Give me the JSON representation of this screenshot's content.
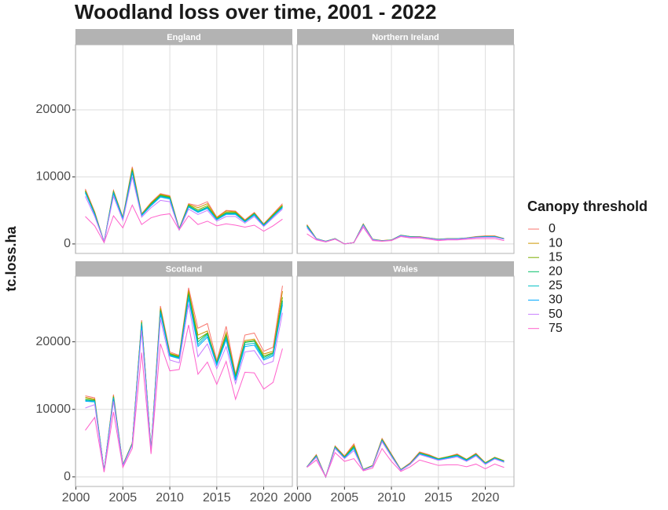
{
  "chart_data": {
    "type": "line",
    "title": "Woodland loss over time, 2001 - 2022",
    "y_label": "tc.loss.ha",
    "legend_title": "Canopy threshold",
    "x": [
      2001,
      2002,
      2003,
      2004,
      2005,
      2006,
      2007,
      2008,
      2009,
      2010,
      2011,
      2012,
      2013,
      2014,
      2015,
      2016,
      2017,
      2018,
      2019,
      2020,
      2021,
      2022
    ],
    "xlim": [
      1999.95,
      2023.05
    ],
    "xticks": [
      2000,
      2005,
      2010,
      2015,
      2020
    ],
    "ylim": [
      -1415,
      29715
    ],
    "yticks": [
      0,
      10000,
      20000
    ],
    "grid": true,
    "series": [
      {
        "name": "0",
        "color": "#F8766D"
      },
      {
        "name": "10",
        "color": "#CD9600"
      },
      {
        "name": "15",
        "color": "#7CAE00"
      },
      {
        "name": "20",
        "color": "#00BE67"
      },
      {
        "name": "25",
        "color": "#00BFC4"
      },
      {
        "name": "30",
        "color": "#00A9FF"
      },
      {
        "name": "50",
        "color": "#C77CFF"
      },
      {
        "name": "75",
        "color": "#FF61CC"
      }
    ],
    "panels": [
      {
        "title": "England",
        "series": [
          {
            "values": [
              8200,
              4800,
              300,
              8000,
              4000,
              11500,
              4500,
              6200,
              7500,
              7200,
              2300,
              6000,
              5700,
              6300,
              4000,
              5000,
              4900,
              3600,
              4700,
              3000,
              4500,
              6000
            ]
          },
          {
            "values": [
              8000,
              4700,
              300,
              7900,
              3900,
              11300,
              4400,
              6100,
              7400,
              7100,
              2300,
              5900,
              5400,
              6000,
              3900,
              4900,
              4800,
              3500,
              4600,
              2900,
              4400,
              5800
            ]
          },
          {
            "values": [
              7900,
              4600,
              300,
              7800,
              3900,
              11100,
              4400,
              6000,
              7300,
              7000,
              2200,
              5800,
              5100,
              5700,
              3800,
              4700,
              4700,
              3400,
              4500,
              2900,
              4300,
              5700
            ]
          },
          {
            "values": [
              7800,
              4500,
              300,
              7700,
              3800,
              10900,
              4300,
              5900,
              7200,
              6900,
              2200,
              5700,
              4900,
              5500,
              3700,
              4600,
              4600,
              3400,
              4500,
              2800,
              4200,
              5600
            ]
          },
          {
            "values": [
              7700,
              4400,
              300,
              7600,
              3800,
              10700,
              4300,
              5800,
              7100,
              6800,
              2200,
              5600,
              4800,
              5400,
              3700,
              4500,
              4500,
              3300,
              4400,
              2800,
              4100,
              5500
            ]
          },
          {
            "values": [
              7600,
              4400,
              300,
              7500,
              3700,
              10600,
              4200,
              5700,
              7000,
              6700,
              2100,
              5500,
              4700,
              5300,
              3600,
              4400,
              4400,
              3300,
              4300,
              2700,
              4100,
              5400
            ]
          },
          {
            "values": [
              7100,
              4100,
              300,
              7100,
              3500,
              10000,
              4000,
              5400,
              6500,
              6300,
              2100,
              5200,
              4400,
              5000,
              3400,
              4100,
              4100,
              3100,
              4100,
              2600,
              3900,
              5200
            ]
          },
          {
            "values": [
              4100,
              2700,
              200,
              4200,
              2400,
              5800,
              2900,
              3900,
              4300,
              4500,
              2100,
              4200,
              2900,
              3400,
              2700,
              3000,
              2800,
              2500,
              2800,
              1900,
              2700,
              3700
            ]
          }
        ]
      },
      {
        "title": "Northern Ireland",
        "series": [
          {
            "values": [
              2900,
              800,
              400,
              800,
              0,
              200,
              3000,
              700,
              500,
              600,
              1300,
              1100,
              1100,
              900,
              700,
              800,
              800,
              900,
              1100,
              1200,
              1200,
              800
            ]
          },
          {
            "values": [
              2800,
              800,
              400,
              800,
              0,
              200,
              2950,
              700,
              500,
              600,
              1300,
              1100,
              1050,
              900,
              700,
              800,
              800,
              900,
              1050,
              1150,
              1150,
              800
            ]
          },
          {
            "values": [
              2750,
              780,
              400,
              790,
              0,
              200,
              2900,
              680,
              480,
              580,
              1280,
              1080,
              1030,
              880,
              680,
              780,
              780,
              880,
              1030,
              1120,
              1120,
              780
            ]
          },
          {
            "values": [
              2700,
              770,
              390,
              780,
              0,
              200,
              2880,
              670,
              470,
              570,
              1270,
              1070,
              1020,
              870,
              670,
              770,
              770,
              870,
              1010,
              1100,
              1100,
              760
            ]
          },
          {
            "values": [
              2650,
              760,
              380,
              770,
              0,
              200,
              2850,
              660,
              460,
              560,
              1260,
              1060,
              1010,
              860,
              660,
              760,
              760,
              860,
              1000,
              1080,
              1080,
              750
            ]
          },
          {
            "values": [
              2600,
              750,
              370,
              760,
              0,
              200,
              2820,
              650,
              450,
              550,
              1250,
              1050,
              1000,
              850,
              650,
              750,
              750,
              850,
              990,
              1060,
              1060,
              740
            ]
          },
          {
            "values": [
              2400,
              720,
              350,
              750,
              0,
              200,
              2750,
              620,
              440,
              540,
              1200,
              1000,
              980,
              820,
              620,
              720,
              700,
              820,
              950,
              1000,
              1000,
              700
            ]
          },
          {
            "values": [
              1500,
              600,
              300,
              700,
              0,
              200,
              2500,
              500,
              400,
              500,
              1100,
              900,
              900,
              700,
              500,
              600,
              600,
              700,
              800,
              800,
              800,
              500
            ]
          }
        ]
      },
      {
        "title": "Scotland",
        "series": [
          {
            "values": [
              12000,
              11700,
              900,
              12200,
              1800,
              5000,
              23200,
              4000,
              25300,
              18500,
              18000,
              28000,
              22000,
              22700,
              17200,
              22300,
              15200,
              21000,
              21300,
              18600,
              19200,
              28300
            ]
          },
          {
            "values": [
              11800,
              11500,
              900,
              12000,
              1800,
              5000,
              23000,
              4000,
              25000,
              18300,
              17900,
              27600,
              21000,
              21600,
              17000,
              21400,
              15000,
              20200,
              20400,
              18200,
              18600,
              27500
            ]
          },
          {
            "values": [
              11600,
              11400,
              900,
              11900,
              1700,
              4900,
              22900,
              4000,
              24800,
              18200,
              17800,
              27300,
              20400,
              21300,
              16900,
              21000,
              14900,
              20000,
              20200,
              17900,
              18400,
              26600
            ]
          },
          {
            "values": [
              11400,
              11300,
              900,
              11800,
              1700,
              4900,
              22800,
              3900,
              24600,
              18100,
              17700,
              27000,
              20000,
              21200,
              16800,
              20800,
              14700,
              19900,
              20100,
              17700,
              18300,
              26100
            ]
          },
          {
            "values": [
              11300,
              11200,
              900,
              11700,
              1700,
              4800,
              22600,
              3900,
              24400,
              18000,
              17600,
              26700,
              19600,
              21000,
              16700,
              20600,
              14500,
              19600,
              19800,
              17500,
              18100,
              25800
            ]
          },
          {
            "values": [
              11200,
              11100,
              900,
              11600,
              1700,
              4800,
              22400,
              3800,
              24200,
              17900,
              17500,
              26400,
              19300,
              20700,
              16500,
              20300,
              14300,
              19300,
              19500,
              17300,
              17900,
              25500
            ]
          },
          {
            "values": [
              10200,
              10700,
              800,
              11200,
              1600,
              4700,
              21700,
              3700,
              23400,
              17300,
              16900,
              25600,
              17800,
              19700,
              16000,
              19300,
              13800,
              18500,
              18700,
              16600,
              17100,
              24300
            ]
          },
          {
            "values": [
              6900,
              8800,
              700,
              9600,
              1400,
              4200,
              18400,
              3400,
              19700,
              15700,
              15900,
              22500,
              15200,
              17000,
              13700,
              17100,
              11500,
              15500,
              15400,
              13000,
              14000,
              19000
            ]
          }
        ]
      },
      {
        "title": "Wales",
        "series": [
          {
            "values": [
              1500,
              3300,
              0,
              4600,
              3100,
              4900,
              1100,
              1700,
              5700,
              3400,
              1100,
              2100,
              3700,
              3300,
              2700,
              3000,
              3400,
              2600,
              3500,
              2100,
              2900,
              2400
            ]
          },
          {
            "values": [
              1500,
              3200,
              0,
              4500,
              3000,
              4700,
              1100,
              1700,
              5600,
              3300,
              1100,
              2000,
              3600,
              3200,
              2700,
              3000,
              3300,
              2600,
              3400,
              2100,
              2900,
              2400
            ]
          },
          {
            "values": [
              1500,
              3150,
              0,
              4450,
              2950,
              4550,
              1080,
              1650,
              5500,
              3250,
              1050,
              1980,
              3550,
              3150,
              2650,
              2950,
              3250,
              2550,
              3350,
              2050,
              2850,
              2350
            ]
          },
          {
            "values": [
              1500,
              3100,
              0,
              4400,
              2900,
              4400,
              1060,
              1620,
              5450,
              3200,
              1040,
              1950,
              3500,
              3100,
              2620,
              2900,
              3200,
              2500,
              3300,
              2000,
              2800,
              2300
            ]
          },
          {
            "values": [
              1480,
              3050,
              0,
              4350,
              2850,
              4300,
              1040,
              1600,
              5400,
              3150,
              1020,
              1920,
              3450,
              3050,
              2580,
              2850,
              3150,
              2450,
              3250,
              1980,
              2780,
              2280
            ]
          },
          {
            "values": [
              1460,
              3000,
              0,
              4300,
              2800,
              4200,
              1020,
              1580,
              5350,
              3100,
              1000,
              1900,
              3400,
              3000,
              2550,
              2800,
              3100,
              2400,
              3200,
              1950,
              2750,
              2250
            ]
          },
          {
            "values": [
              1450,
              2900,
              0,
              4200,
              2700,
              3900,
              1000,
              1550,
              5200,
              3000,
              950,
              1850,
              3300,
              2900,
              2450,
              2700,
              2950,
              2300,
              3100,
              1850,
              2650,
              2150
            ]
          },
          {
            "values": [
              1400,
              2500,
              0,
              3600,
              2300,
              2700,
              900,
              1300,
              4200,
              2300,
              800,
              1500,
              2500,
              2100,
              1700,
              1800,
              1800,
              1500,
              1900,
              1200,
              1900,
              1400
            ]
          }
        ]
      }
    ]
  }
}
